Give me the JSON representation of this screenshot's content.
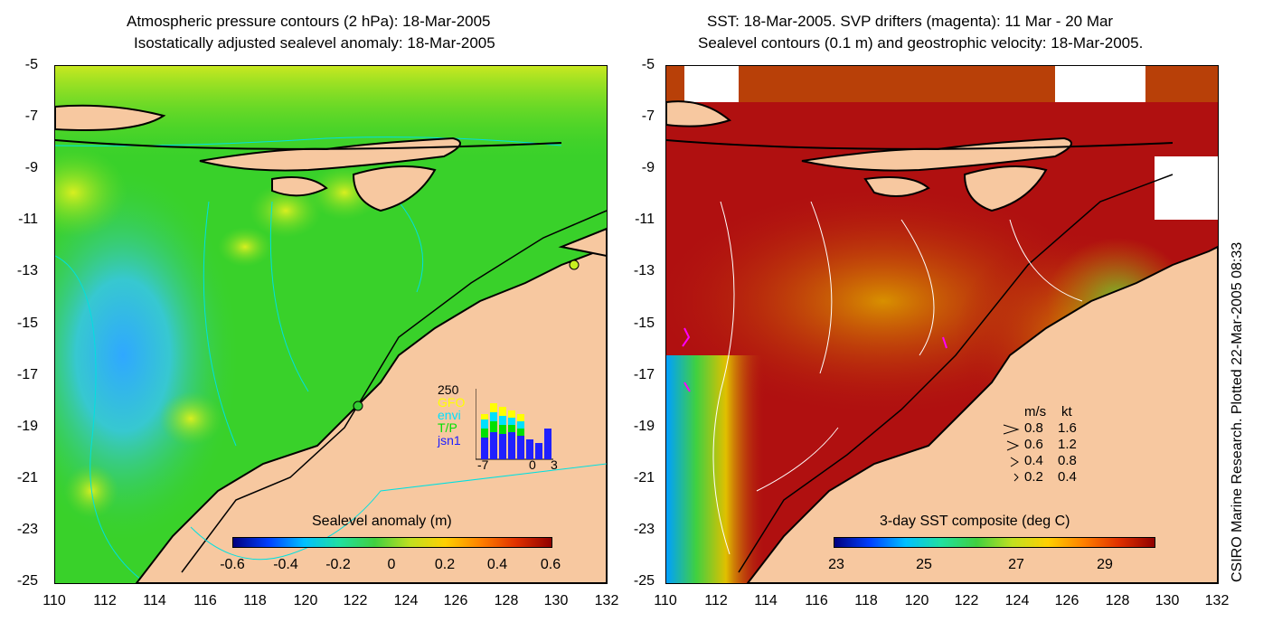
{
  "left": {
    "title_line1": "Atmospheric pressure contours (2 hPa): 18-Mar-2005",
    "title_line2": "Isostatically adjusted sealevel anomaly: 18-Mar-2005",
    "colorbar_title": "Sealevel anomaly (m)",
    "colorbar_ticks": [
      "-0.6",
      "-0.4",
      "-0.2",
      "0",
      "0.2",
      "0.4",
      "0.6"
    ],
    "inset": {
      "top_value": "250",
      "sats": [
        {
          "name": "GFO",
          "color": "#ffff00"
        },
        {
          "name": "envi",
          "color": "#00e0ff"
        },
        {
          "name": "T/P",
          "color": "#00e000"
        },
        {
          "name": "jsn1",
          "color": "#2020ff"
        }
      ],
      "axis_labels": [
        "-7",
        "0",
        "3"
      ]
    }
  },
  "right": {
    "title_line1": "SST: 18-Mar-2005. SVP drifters (magenta): 11 Mar - 20 Mar",
    "title_line2": "Sealevel contours (0.1 m) and geostrophic velocity: 18-Mar-2005.",
    "colorbar_title": "3-day SST composite (deg C)",
    "colorbar_ticks": [
      "23",
      "25",
      "27",
      "29"
    ],
    "velocity_header": [
      "m/s",
      "kt"
    ],
    "velocity_rows": [
      {
        "ms": "0.8",
        "kt": "1.6"
      },
      {
        "ms": "0.6",
        "kt": "1.2"
      },
      {
        "ms": "0.4",
        "kt": "0.8"
      },
      {
        "ms": "0.2",
        "kt": "0.4"
      }
    ]
  },
  "y_ticks": [
    "-5",
    "-7",
    "-9",
    "-11",
    "-13",
    "-15",
    "-17",
    "-19",
    "-21",
    "-23",
    "-25"
  ],
  "x_ticks": [
    "110",
    "112",
    "114",
    "116",
    "118",
    "120",
    "122",
    "124",
    "126",
    "128",
    "130",
    "132"
  ],
  "credit": "CSIRO Marine Research. Plotted 22-Mar-2005 08:33",
  "colors": {
    "land": "#f7c8a0",
    "ocean_left": "#39d12a",
    "ocean_right": "#b01010"
  }
}
